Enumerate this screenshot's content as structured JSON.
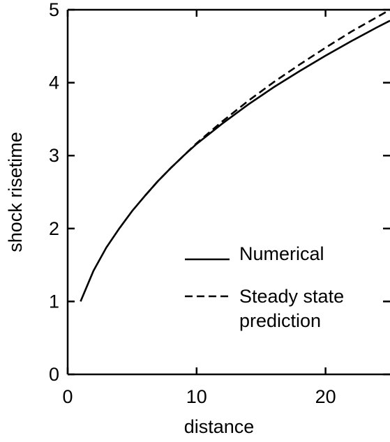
{
  "chart_data": {
    "type": "line",
    "xlabel": "distance",
    "ylabel": "shock risetime",
    "xlim": [
      0,
      25
    ],
    "ylim": [
      0,
      5
    ],
    "x_ticks": [
      0,
      10,
      20
    ],
    "y_ticks": [
      0,
      1,
      2,
      3,
      4,
      5
    ],
    "x_tick_labels": [
      "0",
      "10",
      "20"
    ],
    "y_tick_labels": [
      "0",
      "1",
      "2",
      "3",
      "4",
      "5"
    ],
    "grid": false,
    "legend": {
      "placement": "lower-right",
      "label_lines": [
        [
          "Numerical"
        ],
        [
          "Steady state",
          "prediction"
        ]
      ]
    },
    "series": [
      {
        "name": "Numerical",
        "line_style": "solid",
        "color": "#000000",
        "x": [
          1,
          2,
          3,
          4,
          5,
          6,
          7,
          8,
          9,
          10,
          12,
          14,
          16,
          18,
          20,
          22,
          24,
          25
        ],
        "y": [
          1.0,
          1.42,
          1.74,
          2.0,
          2.24,
          2.45,
          2.65,
          2.83,
          3.0,
          3.16,
          3.44,
          3.7,
          3.94,
          4.16,
          4.37,
          4.57,
          4.76,
          4.85
        ]
      },
      {
        "name": "Steady state prediction",
        "line_style": "dashed",
        "color": "#000000",
        "x": [
          6,
          7,
          8,
          9,
          10,
          12,
          14,
          16,
          18,
          20,
          22,
          24,
          25
        ],
        "y": [
          2.45,
          2.65,
          2.83,
          3.0,
          3.17,
          3.47,
          3.75,
          4.01,
          4.25,
          4.48,
          4.7,
          4.9,
          5.0
        ]
      }
    ]
  }
}
